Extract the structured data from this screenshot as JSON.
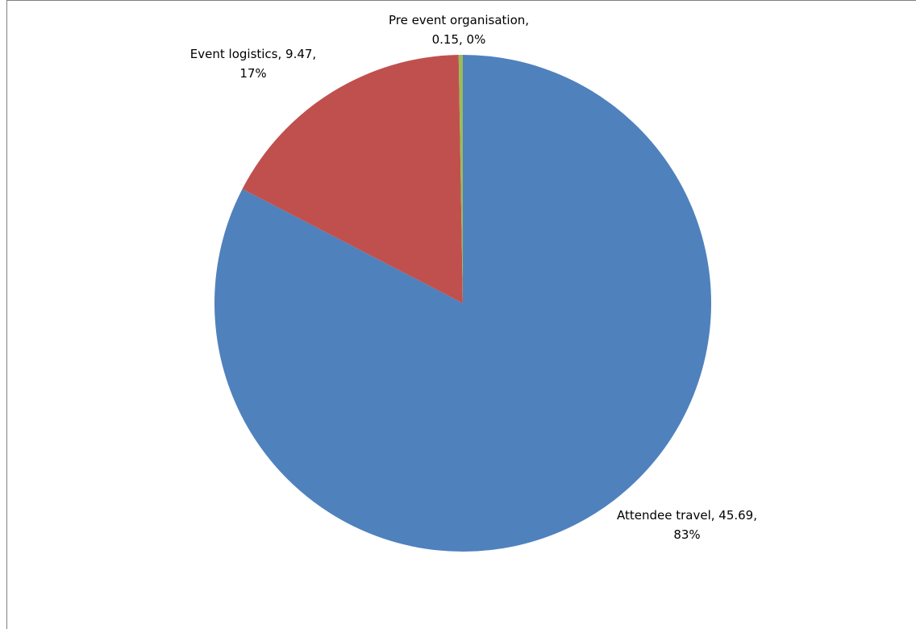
{
  "chart_data": {
    "type": "pie",
    "title": "",
    "start_angle_deg": 0,
    "direction": "clockwise",
    "slices": [
      {
        "name": "Attendee travel",
        "value": 45.69,
        "percent_label": "83%",
        "color": "#4f81bd",
        "label_lines": [
          "Attendee travel, 45.69,",
          "83%"
        ]
      },
      {
        "name": "Event logistics",
        "value": 9.47,
        "percent_label": "17%",
        "color": "#c0504d",
        "label_lines": [
          "Event logistics, 9.47,",
          "17%"
        ]
      },
      {
        "name": "Pre event organisation",
        "value": 0.15,
        "percent_label": "0%",
        "color": "#9bbb59",
        "label_lines": [
          "Pre event organisation,",
          "0.15, 0%"
        ]
      }
    ],
    "legend": "none"
  }
}
